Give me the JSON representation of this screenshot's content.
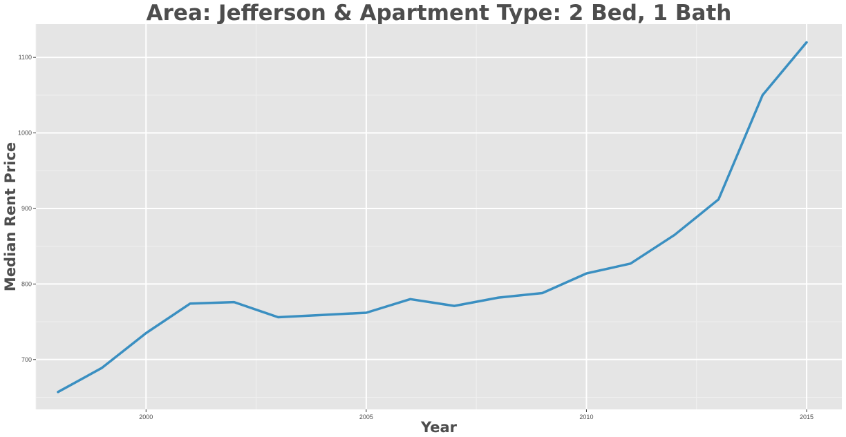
{
  "chart_data": {
    "type": "line",
    "title": "Area: Jefferson & Apartment Type: 2 Bed, 1 Bath",
    "xlabel": "Year",
    "ylabel": "Median Rent Price",
    "xlim": [
      1997.5,
      2015.8
    ],
    "ylim": [
      634,
      1144
    ],
    "x_ticks": [
      2000,
      2005,
      2010,
      2015
    ],
    "y_ticks": [
      700,
      800,
      900,
      1000,
      1100
    ],
    "grid": true,
    "legend": "none",
    "colors": {
      "panel": "#e5e5e5",
      "grid_major": "#ffffff",
      "line": "#3a8fc1"
    },
    "series": [
      {
        "x": [
          1998,
          1999,
          2000,
          2001,
          2002,
          2003,
          2004,
          2005,
          2006,
          2007,
          2008,
          2009,
          2010,
          2011,
          2012,
          2013,
          2014,
          2015
        ],
        "values": [
          657,
          689,
          735,
          774,
          776,
          756,
          759,
          762,
          780,
          771,
          782,
          788,
          814,
          827,
          865,
          912,
          1050,
          1120
        ]
      }
    ]
  }
}
